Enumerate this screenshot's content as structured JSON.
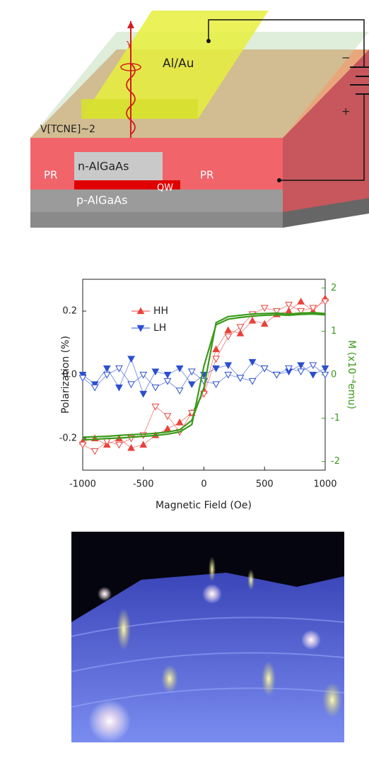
{
  "diagram": {
    "labels": [
      "γ",
      "Al/Au",
      "V[TCNE]~2",
      "n-AlGaAs",
      "QW",
      "PR",
      "PR",
      "p-AlGaAs",
      "−",
      "+"
    ]
  },
  "chart_data": {
    "type": "line",
    "x_label": "Magnetic Field (Oe)",
    "y_label": "Polarization (%)",
    "y2_label": "M (x10⁻⁴emu)",
    "x": [
      -1000,
      -900,
      -800,
      -700,
      -600,
      -500,
      -400,
      -300,
      -200,
      -100,
      0,
      100,
      200,
      300,
      400,
      500,
      600,
      700,
      800,
      900,
      1000
    ],
    "xlim": [
      -1000,
      1000
    ],
    "xticks": [
      -1000,
      -500,
      0,
      500,
      1000
    ],
    "ylim": [
      -0.3,
      0.3
    ],
    "yticks": [
      {
        "value": -0.2,
        "label": "-0.2"
      },
      {
        "value": 0,
        "label": "0.0"
      },
      {
        "value": 0.2,
        "label": "0.2"
      }
    ],
    "y2lim": [
      -2.2,
      2.2
    ],
    "y2ticks": [
      -2,
      -1,
      0,
      1,
      2
    ],
    "y2_color": "#3a9a1a",
    "series": [
      {
        "name": "HH",
        "color": "#e8423a",
        "marker": "triangle-up",
        "filled": true,
        "values": [
          -0.21,
          -0.2,
          -0.22,
          -0.2,
          -0.23,
          -0.22,
          -0.19,
          -0.17,
          -0.15,
          -0.12,
          -0.05,
          0.08,
          0.14,
          0.13,
          0.17,
          0.16,
          0.19,
          0.2,
          0.23,
          0.2,
          0.24
        ]
      },
      {
        "color": "#e8423a",
        "marker": "triangle-down",
        "filled": false,
        "values": [
          -0.22,
          -0.24,
          -0.21,
          -0.22,
          -0.2,
          -0.19,
          -0.1,
          -0.13,
          -0.18,
          -0.12,
          -0.06,
          0.05,
          0.12,
          0.15,
          0.19,
          0.21,
          0.2,
          0.22,
          0.2,
          0.21,
          0.23
        ]
      },
      {
        "name": "LH",
        "color": "#2a4fd0",
        "marker": "triangle-down",
        "filled": true,
        "values": [
          0.0,
          -0.03,
          0.02,
          -0.04,
          0.05,
          -0.06,
          0.01,
          0.0,
          0.02,
          -0.03,
          0.0,
          0.02,
          0.03,
          -0.01,
          0.04,
          0.02,
          0.0,
          0.01,
          0.03,
          0.0,
          0.02
        ]
      },
      {
        "color": "#2a4fd0",
        "marker": "triangle-down",
        "filled": false,
        "values": [
          -0.01,
          -0.04,
          0.0,
          0.02,
          -0.03,
          0.0,
          -0.04,
          -0.02,
          -0.05,
          0.01,
          -0.02,
          -0.03,
          0.0,
          -0.01,
          -0.02,
          0.02,
          0.0,
          0.02,
          0.01,
          0.03,
          0.0
        ]
      },
      {
        "color": "#3a9a1a",
        "axis": "y2",
        "values": [
          -1.5,
          -1.49,
          -1.47,
          -1.46,
          -1.44,
          -1.42,
          -1.4,
          -1.37,
          -1.32,
          -1.15,
          0.2,
          1.15,
          1.28,
          1.32,
          1.35,
          1.37,
          1.38,
          1.37,
          1.39,
          1.4,
          1.38
        ]
      },
      {
        "color": "#3a9a1a",
        "axis": "y2",
        "values": [
          -1.44,
          -1.43,
          -1.42,
          -1.4,
          -1.38,
          -1.37,
          -1.35,
          -1.32,
          -1.27,
          -1.05,
          -0.3,
          1.2,
          1.34,
          1.37,
          1.4,
          1.41,
          1.42,
          1.4,
          1.42,
          1.43,
          1.41
        ]
      }
    ]
  }
}
